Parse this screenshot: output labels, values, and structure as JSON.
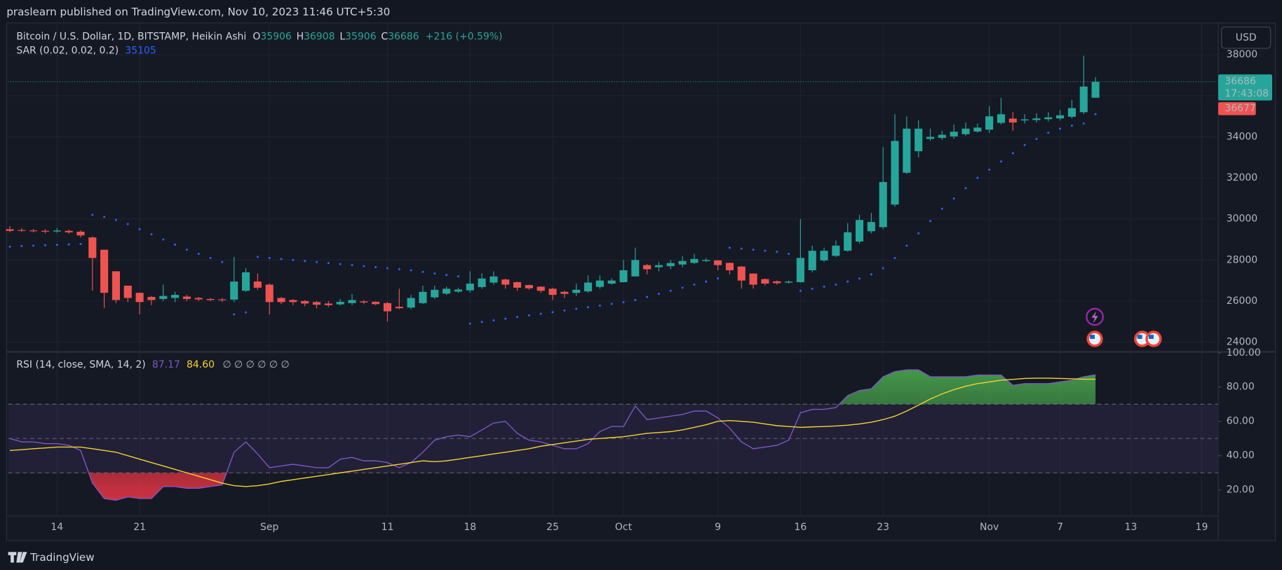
{
  "header": "praslearn published on TradingView.com, Nov 10, 2023 11:46 UTC+5:30",
  "footer": "TradingView",
  "currency": "USD",
  "countdown": "17:43:08",
  "bid_label": "36677",
  "chart_data": [
    {
      "type": "candlestick",
      "title": "Bitcoin / U.S. Dollar, 1D, BITSTAMP, Heikin Ashi",
      "ohlc_letters": [
        "O",
        "H",
        "L",
        "C"
      ],
      "change": "+216 (+0.59%)",
      "up_color": "#26a69a",
      "down_color": "#ef5350",
      "xlim": [
        -0.14,
        102.4
      ],
      "xticks": [
        {
          "value": 4,
          "label": "14"
        },
        {
          "value": 11,
          "label": "21"
        },
        {
          "value": 22,
          "label": "Sep"
        },
        {
          "value": 32,
          "label": "11"
        },
        {
          "value": 39,
          "label": "18"
        },
        {
          "value": 46,
          "label": "25"
        },
        {
          "value": 52,
          "label": "Oct"
        },
        {
          "value": 60,
          "label": "9"
        },
        {
          "value": 67,
          "label": "16"
        },
        {
          "value": 74,
          "label": "23"
        },
        {
          "value": 83,
          "label": "Nov"
        },
        {
          "value": 89,
          "label": "7"
        },
        {
          "value": 95,
          "label": "13"
        },
        {
          "value": 101,
          "label": "19"
        }
      ],
      "ylim": [
        23560,
        39550
      ],
      "yticks": [
        24000,
        26000,
        28000,
        30000,
        32000,
        34000,
        36000,
        38000
      ],
      "grid": true,
      "ohlc": [
        [
          29500,
          29650,
          29350,
          29420
        ],
        [
          29460,
          29550,
          29380,
          29420
        ],
        [
          29440,
          29520,
          29350,
          29400
        ],
        [
          29420,
          29500,
          29300,
          29380
        ],
        [
          29390,
          29560,
          29320,
          29440
        ],
        [
          29420,
          29480,
          29280,
          29350
        ],
        [
          29380,
          29450,
          29100,
          29200
        ],
        [
          29100,
          29150,
          26500,
          28100
        ],
        [
          28500,
          28500,
          25650,
          26400
        ],
        [
          27450,
          27450,
          25900,
          26050
        ],
        [
          26750,
          26750,
          25950,
          26150
        ],
        [
          26400,
          26400,
          25350,
          25950
        ],
        [
          26200,
          26250,
          25800,
          26050
        ],
        [
          26100,
          26800,
          26000,
          26250
        ],
        [
          26150,
          26450,
          25950,
          26300
        ],
        [
          26220,
          26300,
          26000,
          26100
        ],
        [
          26150,
          26200,
          26000,
          26080
        ],
        [
          26100,
          26150,
          26000,
          26050
        ],
        [
          26080,
          26150,
          25950,
          26060
        ],
        [
          26070,
          28150,
          25950,
          26950
        ],
        [
          26500,
          27600,
          26450,
          27400
        ],
        [
          26950,
          27350,
          26550,
          26650
        ],
        [
          26800,
          26850,
          25350,
          25950
        ],
        [
          26150,
          26200,
          25850,
          25950
        ],
        [
          26050,
          26100,
          25800,
          25950
        ],
        [
          26000,
          26050,
          25750,
          25880
        ],
        [
          25950,
          26000,
          25650,
          25820
        ],
        [
          25880,
          26000,
          25700,
          25800
        ],
        [
          25840,
          26100,
          25780,
          25960
        ],
        [
          25900,
          26350,
          25800,
          26050
        ],
        [
          25980,
          26050,
          25850,
          25930
        ],
        [
          25960,
          26000,
          25800,
          25850
        ],
        [
          25900,
          25950,
          25000,
          25500
        ],
        [
          25720,
          26600,
          25600,
          25650
        ],
        [
          25680,
          26300,
          25600,
          26150
        ],
        [
          25900,
          26750,
          25850,
          26450
        ],
        [
          26180,
          26750,
          26100,
          26550
        ],
        [
          26360,
          26700,
          26300,
          26600
        ],
        [
          26460,
          26650,
          26400,
          26560
        ],
        [
          26520,
          27450,
          26400,
          26850
        ],
        [
          26680,
          27350,
          26600,
          27100
        ],
        [
          26900,
          27450,
          26800,
          27200
        ],
        [
          27050,
          27100,
          26600,
          26800
        ],
        [
          26920,
          26950,
          26500,
          26650
        ],
        [
          26780,
          26800,
          26550,
          26620
        ],
        [
          26700,
          26720,
          26400,
          26500
        ],
        [
          26600,
          26650,
          26050,
          26300
        ],
        [
          26450,
          26500,
          26150,
          26350
        ],
        [
          26400,
          26850,
          26250,
          26550
        ],
        [
          26470,
          27250,
          26400,
          26900
        ],
        [
          26690,
          27250,
          26600,
          27000
        ],
        [
          26850,
          27100,
          26800,
          27000
        ],
        [
          26920,
          28000,
          26900,
          27500
        ],
        [
          27200,
          28600,
          27200,
          28000
        ],
        [
          27750,
          27800,
          27300,
          27550
        ],
        [
          27650,
          27900,
          27450,
          27750
        ],
        [
          27700,
          28000,
          27550,
          27850
        ],
        [
          27780,
          28200,
          27650,
          27950
        ],
        [
          27860,
          28300,
          27800,
          28050
        ],
        [
          27950,
          28100,
          27900,
          28000
        ],
        [
          27980,
          28000,
          27500,
          27750
        ],
        [
          27860,
          27870,
          27300,
          27500
        ],
        [
          27680,
          27700,
          26600,
          27000
        ],
        [
          27340,
          27350,
          26600,
          26800
        ],
        [
          27070,
          27100,
          26750,
          26850
        ],
        [
          26960,
          27000,
          26800,
          26870
        ],
        [
          26900,
          27000,
          26850,
          26950
        ],
        [
          26920,
          30000,
          26900,
          28100
        ],
        [
          27500,
          28700,
          27400,
          28450
        ],
        [
          27980,
          28600,
          27900,
          28450
        ],
        [
          28200,
          28950,
          28150,
          28700
        ],
        [
          28450,
          29800,
          28400,
          29350
        ],
        [
          28900,
          30200,
          28800,
          29950
        ],
        [
          29400,
          30300,
          29300,
          29850
        ],
        [
          29600,
          33500,
          29500,
          31800
        ],
        [
          30700,
          35100,
          30600,
          33800
        ],
        [
          32250,
          35000,
          32200,
          34400
        ],
        [
          33300,
          34800,
          33000,
          34400
        ],
        [
          33900,
          34400,
          33800,
          34000
        ],
        [
          33950,
          34300,
          33850,
          34100
        ],
        [
          34020,
          34600,
          33900,
          34250
        ],
        [
          34130,
          34700,
          34050,
          34400
        ],
        [
          34260,
          34650,
          34200,
          34450
        ],
        [
          34350,
          35500,
          34200,
          35000
        ],
        [
          34680,
          35900,
          34600,
          35100
        ],
        [
          34890,
          35200,
          34300,
          34700
        ],
        [
          34800,
          35100,
          34650,
          34850
        ],
        [
          34820,
          35150,
          34700,
          34900
        ],
        [
          34860,
          35200,
          34750,
          34950
        ],
        [
          34900,
          35300,
          34800,
          35050
        ],
        [
          34980,
          35800,
          34900,
          35400
        ],
        [
          35200,
          37950,
          35100,
          36450
        ],
        [
          35906,
          36908,
          35906,
          36686
        ]
      ],
      "series": [
        {
          "name": "SAR (0.02, 0.02, 0.2)",
          "color": "#2962ff",
          "values": [
            28650,
            28680,
            28700,
            28720,
            28740,
            28760,
            28780,
            30200,
            30100,
            29950,
            29750,
            29500,
            29250,
            29000,
            28750,
            28500,
            28300,
            28100,
            27900,
            25350,
            25450,
            28150,
            28100,
            28050,
            28000,
            27950,
            27900,
            27850,
            27800,
            27750,
            27700,
            27650,
            27600,
            27550,
            27500,
            27420,
            27340,
            27270,
            27200,
            24900,
            24980,
            25060,
            25140,
            25220,
            25300,
            25380,
            25460,
            25540,
            25620,
            25700,
            25780,
            25860,
            25940,
            26050,
            26200,
            26350,
            26500,
            26650,
            26800,
            26950,
            27100,
            28600,
            28550,
            28500,
            28450,
            28400,
            28300,
            26500,
            26600,
            26700,
            26800,
            26950,
            27100,
            27300,
            27600,
            28100,
            28700,
            29300,
            29900,
            30500,
            31000,
            31500,
            32000,
            32400,
            32800,
            33200,
            33600,
            33900,
            34200,
            34400,
            34550,
            34650,
            35105
          ]
        }
      ]
    },
    {
      "type": "line",
      "title": "RSI (14, close, SMA, 14, 2)",
      "legend_extra": "∅ ∅ ∅ ∅ ∅ ∅",
      "ylim": [
        4.8,
        100
      ],
      "yticks": [
        {
          "value": 100,
          "label": "100.00"
        },
        {
          "value": 80,
          "label": "80.00"
        },
        {
          "value": 60,
          "label": "60.00"
        },
        {
          "value": 40,
          "label": "40.00"
        },
        {
          "value": 20,
          "label": "20.00"
        }
      ],
      "levels": [
        70,
        50,
        30
      ],
      "overbought_color": "#4caf50",
      "oversold_color": "#f23645",
      "band_color": "#7e57c2",
      "series": [
        {
          "color": "#7e57c2",
          "values": [
            50,
            48,
            48,
            47,
            47,
            46,
            43,
            24,
            15,
            14,
            16,
            15,
            15,
            22,
            22,
            21,
            21,
            22,
            23,
            42,
            48,
            41,
            33,
            34,
            35,
            34,
            33,
            33,
            38,
            39,
            37,
            37,
            36,
            33,
            36,
            42,
            49,
            51,
            52,
            51,
            55,
            59,
            60,
            53,
            49,
            48,
            46,
            44,
            44,
            47,
            54,
            57,
            57,
            69,
            61,
            62,
            63,
            64,
            66,
            66,
            62,
            56,
            48,
            44,
            45,
            46,
            49,
            65,
            67,
            67,
            68,
            75,
            78,
            79,
            86,
            89,
            90,
            90,
            86,
            86,
            86,
            86,
            87,
            87,
            87,
            81,
            82,
            82,
            82,
            83,
            84,
            86,
            87.17
          ]
        },
        {
          "color": "#f7d12e",
          "legend_value": "84.60",
          "values": [
            43,
            43.5,
            44,
            44.5,
            45,
            45,
            45,
            44,
            43,
            42,
            40,
            38,
            36,
            34,
            32,
            30,
            28,
            26,
            24,
            22.5,
            22,
            22.5,
            23.5,
            25,
            26,
            27,
            28,
            29,
            30,
            31,
            32,
            33,
            34,
            35,
            36,
            37,
            36.5,
            37,
            38,
            39,
            40,
            41,
            42,
            43,
            44,
            45.5,
            46.5,
            47.5,
            48.5,
            49.5,
            50,
            50.5,
            51,
            52,
            53,
            53.5,
            54,
            55,
            56.5,
            58,
            60,
            60.5,
            60,
            59.5,
            58.5,
            57.5,
            57,
            56.5,
            56.8,
            57,
            57.3,
            57.8,
            58.5,
            59.5,
            61,
            63,
            66,
            69.5,
            73,
            76,
            78.5,
            80.5,
            82,
            83,
            84,
            84.5,
            85,
            85.2,
            85.2,
            85,
            84.8,
            84.6,
            84.6
          ]
        }
      ]
    }
  ]
}
